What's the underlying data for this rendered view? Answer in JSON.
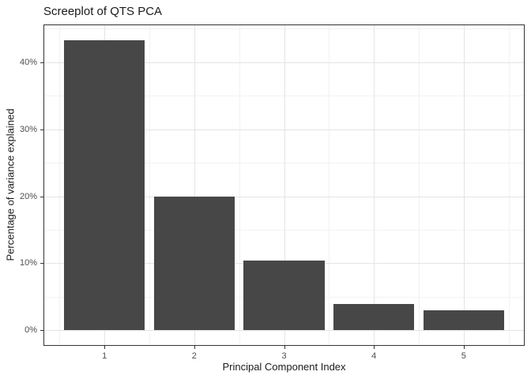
{
  "chart_data": {
    "type": "bar",
    "title": "Screeplot of QTS PCA",
    "xlabel": "Principal Component Index",
    "ylabel": "Percentage of variance explained",
    "categories": [
      "1",
      "2",
      "3",
      "4",
      "5"
    ],
    "values": [
      43.3,
      20.0,
      10.4,
      3.9,
      3.0
    ],
    "y_ticks": [
      0,
      10,
      20,
      30,
      40
    ],
    "y_tick_labels": [
      "0%",
      "10%",
      "20%",
      "30%",
      "40%"
    ],
    "y_minor_ticks": [
      5,
      15,
      25,
      35,
      45
    ],
    "ylim": [
      -2.2,
      45.5
    ],
    "xlim": [
      0.33,
      5.67
    ],
    "bar_width": 0.9,
    "grid": "major and minor gridlines, both axes",
    "legend_position": "none",
    "colors": {
      "bar_fill": "#474747",
      "panel_border": "#333333",
      "grid_major": "#e4e4e4",
      "grid_minor": "#f2f2f2",
      "axis_text": "#4d4d4d",
      "title_text": "#1a1a1a",
      "background": "#ffffff"
    }
  }
}
